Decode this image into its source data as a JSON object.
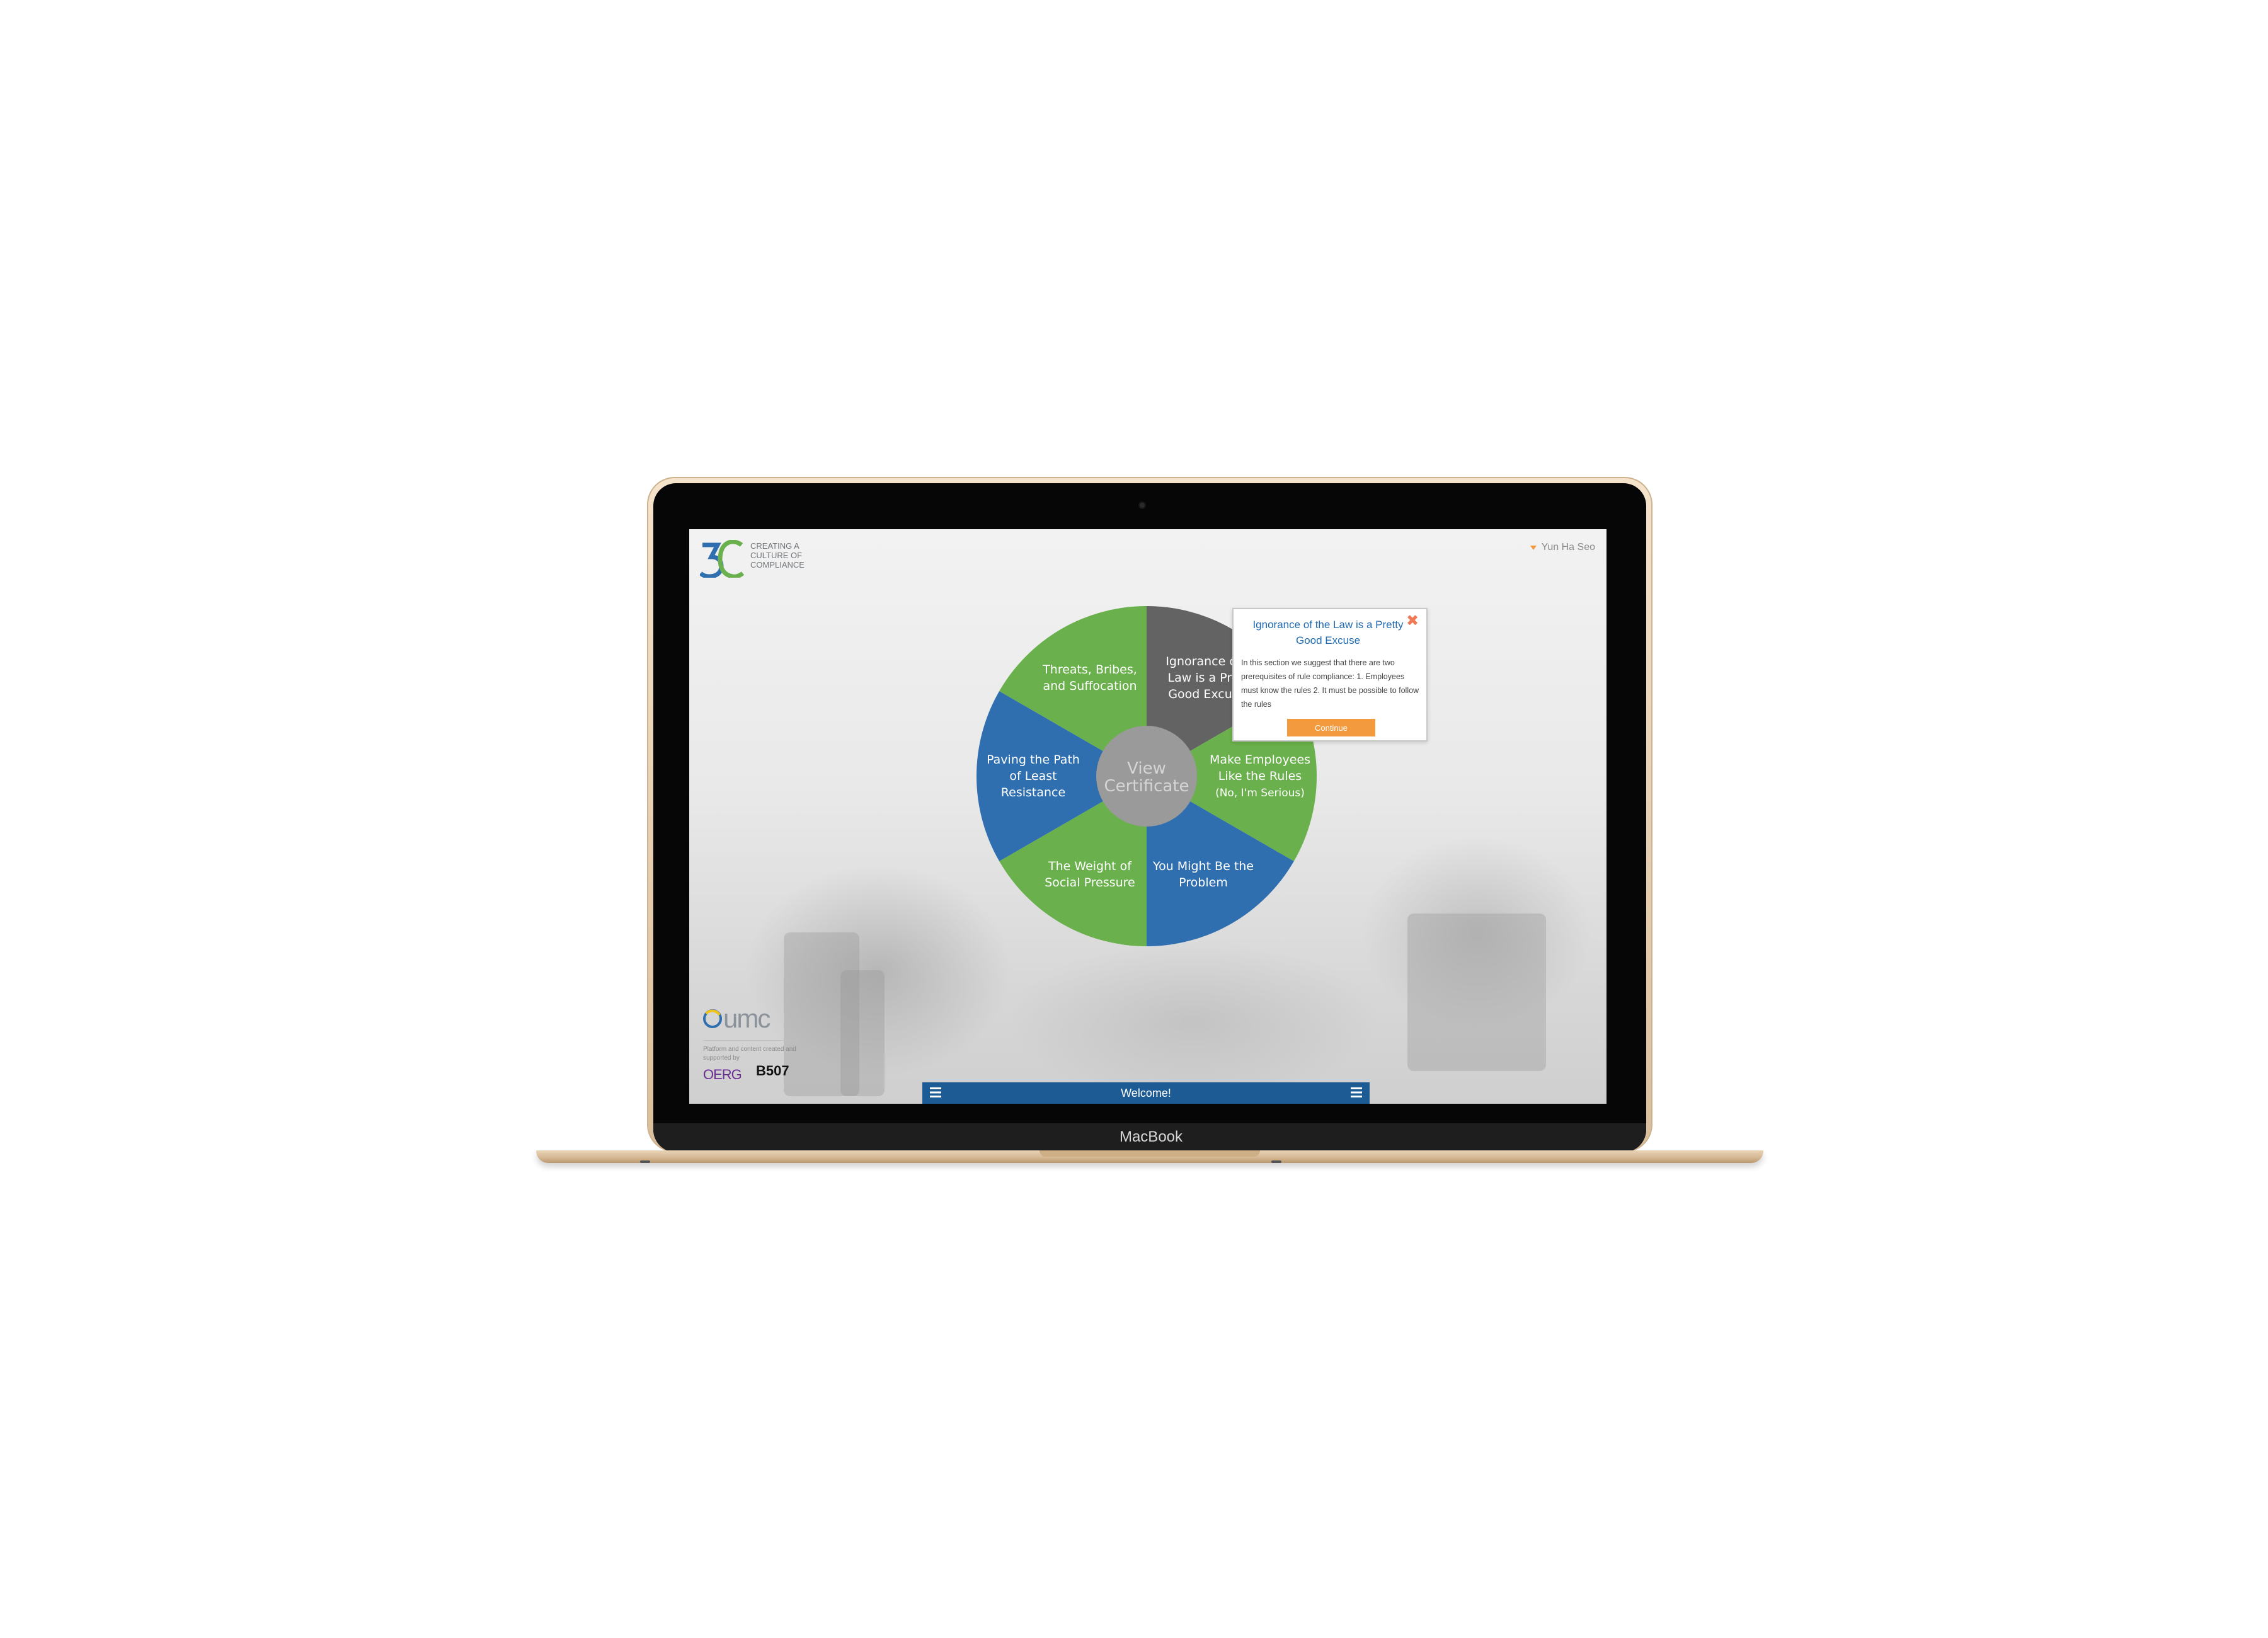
{
  "device": {
    "label": "MacBook"
  },
  "brand": {
    "mark": "3C",
    "tagline": [
      "CREATING A",
      "CULTURE OF",
      "COMPLIANCE"
    ]
  },
  "header": {
    "user_name": "Yun Ha Seo"
  },
  "wheel": {
    "center_label": [
      "View",
      "Certificate"
    ],
    "segments": [
      {
        "id": "ignorance",
        "lines": [
          "Ignorance of",
          "Law is a Pre",
          "Good Excus"
        ],
        "color": "#636363"
      },
      {
        "id": "employees",
        "lines": [
          "Make Employees",
          "Like the Rules",
          "(No, I'm Serious)"
        ],
        "color": "#6ab04c"
      },
      {
        "id": "problem",
        "lines": [
          "You Might Be the",
          "Problem"
        ],
        "color": "#2f6fb0"
      },
      {
        "id": "social",
        "lines": [
          "The Weight of",
          "Social Pressure"
        ],
        "color": "#6ab04c"
      },
      {
        "id": "path",
        "lines": [
          "Paving the Path",
          "of Least",
          "Resistance"
        ],
        "color": "#2f6fb0"
      },
      {
        "id": "threats",
        "lines": [
          "Threats, Bribes,",
          "and Suffocation"
        ],
        "color": "#6ab04c"
      }
    ]
  },
  "popup": {
    "title": "Ignorance of the Law is a Pretty Good Excuse",
    "body": "In this section we suggest that there are two prerequisites of rule compliance: 1. Employees must know the rules 2. It must be possible to follow the rules",
    "button_label": "Continue",
    "close_glyph": "✖"
  },
  "sponsor": {
    "umc": "umc",
    "caption": "Platform and content created and supported by",
    "oerg": "OERG",
    "b507": "B507"
  },
  "footer": {
    "welcome": "Welcome!"
  },
  "colors": {
    "green": "#6ab04c",
    "blue": "#2f6fb0",
    "gray": "#636363",
    "accent": "#f39a3e",
    "bar": "#1d5b94"
  }
}
